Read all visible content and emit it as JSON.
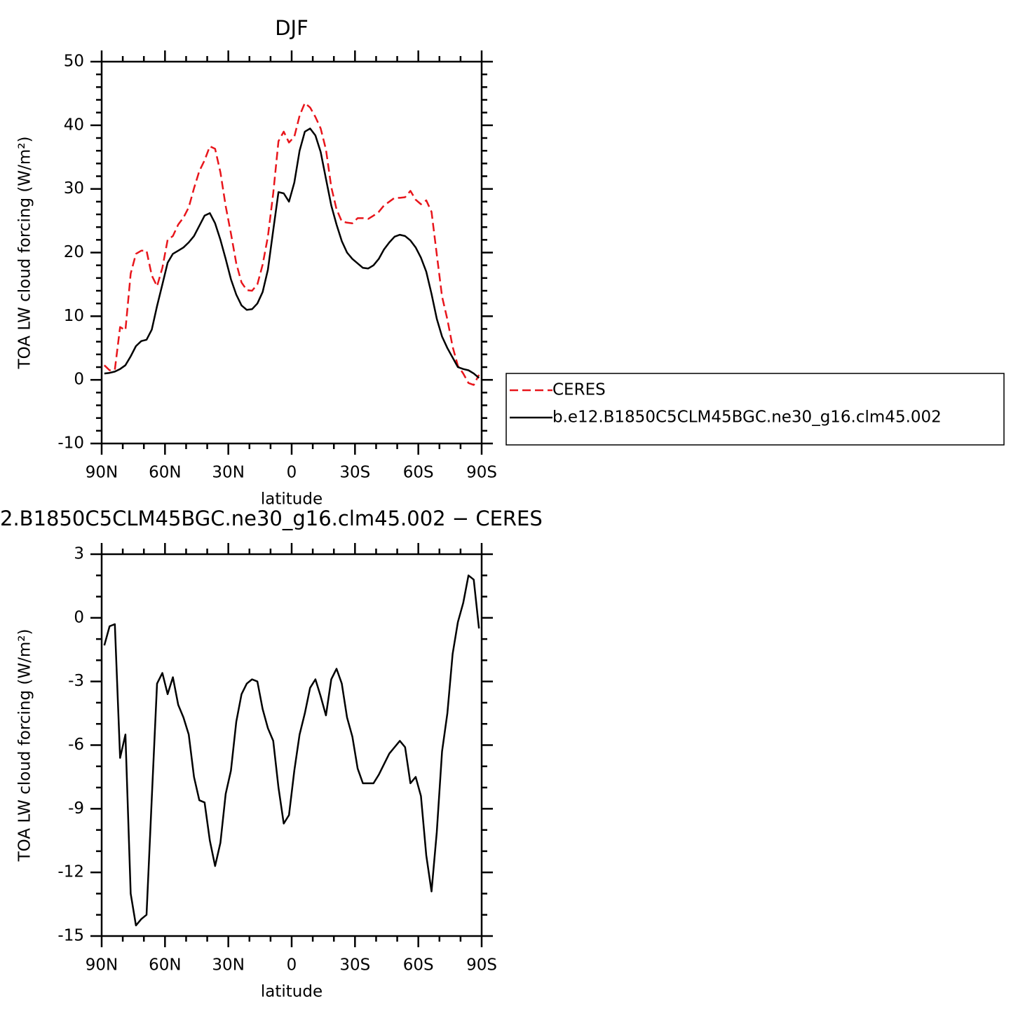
{
  "chart_data": [
    {
      "type": "line",
      "title": "DJF",
      "ylabel": "TOA LW cloud forcing (W/m²)",
      "xlabel": "latitude",
      "x": [
        88.75,
        86.25,
        83.75,
        81.25,
        78.75,
        76.25,
        73.75,
        71.25,
        68.75,
        66.25,
        63.75,
        61.25,
        58.75,
        56.25,
        53.75,
        51.25,
        48.75,
        46.25,
        43.75,
        41.25,
        38.75,
        36.25,
        33.75,
        31.25,
        28.75,
        26.25,
        23.75,
        21.25,
        18.75,
        16.25,
        13.75,
        11.25,
        8.75,
        6.25,
        3.75,
        1.25,
        -1.25,
        -3.75,
        -6.25,
        -8.75,
        -11.25,
        -13.75,
        -16.25,
        -18.75,
        -21.25,
        -23.75,
        -26.25,
        -28.75,
        -31.25,
        -33.75,
        -36.25,
        -38.75,
        -41.25,
        -43.75,
        -46.25,
        -48.75,
        -51.25,
        -53.75,
        -56.25,
        -58.75,
        -61.25,
        -63.75,
        -66.25,
        -68.75,
        -71.25,
        -73.75,
        -76.25,
        -78.75,
        -81.25,
        -83.75,
        -86.25,
        -88.75
      ],
      "series": [
        {
          "name": "CERES",
          "color": "#e8151b",
          "style": "dashed",
          "values": [
            2.3,
            1.5,
            1.6,
            8.3,
            7.8,
            16.7,
            19.8,
            20.3,
            20.3,
            16.4,
            14.7,
            17.6,
            22.0,
            22.6,
            24.4,
            25.5,
            27.1,
            30.1,
            32.8,
            34.5,
            36.7,
            36.3,
            32.6,
            27.3,
            23.0,
            18.3,
            15.3,
            14.1,
            14.0,
            15.0,
            18.1,
            22.5,
            29.3,
            37.5,
            39.0,
            37.3,
            38.2,
            41.5,
            43.5,
            42.8,
            41.3,
            39.5,
            36.2,
            30.3,
            26.8,
            24.9,
            24.7,
            24.6,
            25.4,
            25.4,
            25.3,
            25.8,
            26.4,
            27.4,
            28.0,
            28.6,
            28.6,
            28.7,
            29.7,
            28.3,
            27.6,
            28.2,
            26.4,
            19.7,
            13.1,
            9.5,
            5.2,
            2.2,
            1.0,
            -0.5,
            -0.8,
            0.8
          ]
        },
        {
          "name": "b.e12.B1850C5CLM45BGC.ne30_g16.clm45.002",
          "color": "#000000",
          "style": "solid",
          "values": [
            1.0,
            1.1,
            1.3,
            1.7,
            2.3,
            3.7,
            5.3,
            6.1,
            6.3,
            7.9,
            11.6,
            15.0,
            18.4,
            19.8,
            20.3,
            20.8,
            21.6,
            22.6,
            24.2,
            25.8,
            26.2,
            24.6,
            22.0,
            19.0,
            15.8,
            13.4,
            11.7,
            11.0,
            11.1,
            12.0,
            13.8,
            17.3,
            23.5,
            29.5,
            29.3,
            28.0,
            31.0,
            36.0,
            39.0,
            39.5,
            38.4,
            35.8,
            31.6,
            27.4,
            24.4,
            21.8,
            20.0,
            19.0,
            18.3,
            17.6,
            17.5,
            18.0,
            19.0,
            20.5,
            21.6,
            22.5,
            22.8,
            22.6,
            21.9,
            20.8,
            19.2,
            17.0,
            13.5,
            9.6,
            6.8,
            5.0,
            3.5,
            2.0,
            1.7,
            1.5,
            1.0,
            0.3
          ]
        }
      ],
      "xlim": [
        90,
        -90
      ],
      "xticks": [
        {
          "value": 90,
          "label": "90N"
        },
        {
          "value": 60,
          "label": "60N"
        },
        {
          "value": 30,
          "label": "30N"
        },
        0,
        {
          "value": -30,
          "label": "30S"
        },
        {
          "value": -60,
          "label": "60S"
        },
        {
          "value": -90,
          "label": "90S"
        }
      ],
      "ylim": [
        -10,
        50
      ],
      "yticks": [
        -10,
        0,
        10,
        20,
        30,
        40,
        50
      ],
      "legend": "right"
    },
    {
      "type": "line",
      "title": "2.B1850C5CLM45BGC.ne30_g16.clm45.002 − CERES",
      "ylabel": "TOA LW cloud forcing (W/m²)",
      "xlabel": "latitude",
      "x": [
        88.75,
        86.25,
        83.75,
        81.25,
        78.75,
        76.25,
        73.75,
        71.25,
        68.75,
        66.25,
        63.75,
        61.25,
        58.75,
        56.25,
        53.75,
        51.25,
        48.75,
        46.25,
        43.75,
        41.25,
        38.75,
        36.25,
        33.75,
        31.25,
        28.75,
        26.25,
        23.75,
        21.25,
        18.75,
        16.25,
        13.75,
        11.25,
        8.75,
        6.25,
        3.75,
        1.25,
        -1.25,
        -3.75,
        -6.25,
        -8.75,
        -11.25,
        -13.75,
        -16.25,
        -18.75,
        -21.25,
        -23.75,
        -26.25,
        -28.75,
        -31.25,
        -33.75,
        -36.25,
        -38.75,
        -41.25,
        -43.75,
        -46.25,
        -48.75,
        -51.25,
        -53.75,
        -56.25,
        -58.75,
        -61.25,
        -63.75,
        -66.25,
        -68.75,
        -71.25,
        -73.75,
        -76.25,
        -78.75,
        -81.25,
        -83.75,
        -86.25,
        -88.75
      ],
      "series": [
        {
          "color": "#000000",
          "style": "solid",
          "values": [
            -1.3,
            -0.4,
            -0.3,
            -6.6,
            -5.5,
            -13.0,
            -14.5,
            -14.2,
            -14.0,
            -8.5,
            -3.1,
            -2.6,
            -3.6,
            -2.8,
            -4.1,
            -4.7,
            -5.5,
            -7.5,
            -8.6,
            -8.7,
            -10.5,
            -11.7,
            -10.6,
            -8.3,
            -7.2,
            -4.9,
            -3.6,
            -3.1,
            -2.9,
            -3.0,
            -4.3,
            -5.2,
            -5.8,
            -8.0,
            -9.7,
            -9.3,
            -7.2,
            -5.5,
            -4.5,
            -3.3,
            -2.9,
            -3.7,
            -4.6,
            -2.9,
            -2.4,
            -3.1,
            -4.7,
            -5.6,
            -7.1,
            -7.8,
            -7.8,
            -7.8,
            -7.4,
            -6.9,
            -6.4,
            -6.1,
            -5.8,
            -6.1,
            -7.8,
            -7.5,
            -8.4,
            -11.2,
            -12.9,
            -10.1,
            -6.3,
            -4.5,
            -1.7,
            -0.2,
            0.7,
            2.0,
            1.8,
            -0.5
          ]
        }
      ],
      "xlim": [
        90,
        -90
      ],
      "xticks": [
        {
          "value": 90,
          "label": "90N"
        },
        {
          "value": 60,
          "label": "60N"
        },
        {
          "value": 30,
          "label": "30N"
        },
        0,
        {
          "value": -30,
          "label": "30S"
        },
        {
          "value": -60,
          "label": "60S"
        },
        {
          "value": -90,
          "label": "90S"
        }
      ],
      "ylim": [
        -15,
        3
      ],
      "yticks": [
        -15,
        -12,
        -9,
        -6,
        -3,
        0,
        3
      ]
    }
  ]
}
